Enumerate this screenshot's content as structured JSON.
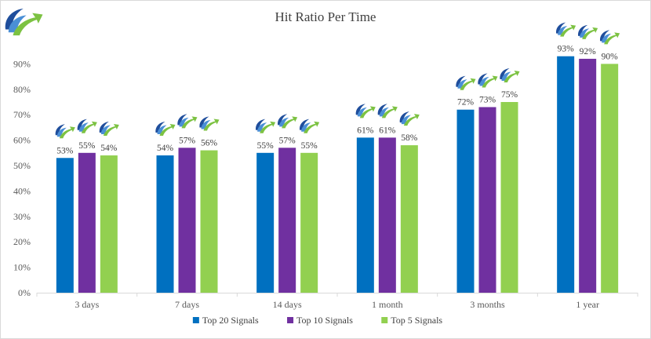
{
  "chart_data": {
    "type": "bar",
    "title": "Hit Ratio Per Time",
    "categories": [
      "3 days",
      "7 days",
      "14 days",
      "1 month",
      "3 months",
      "1 year"
    ],
    "series": [
      {
        "name": "Top 20 Signals",
        "color": "#0070c0",
        "values": [
          53,
          54,
          55,
          61,
          72,
          93
        ]
      },
      {
        "name": "Top 10 Signals",
        "color": "#7030a0",
        "values": [
          55,
          57,
          57,
          61,
          73,
          92
        ]
      },
      {
        "name": "Top 5 Signals",
        "color": "#92d050",
        "values": [
          54,
          56,
          55,
          58,
          75,
          90
        ]
      }
    ],
    "ylim": [
      0,
      90
    ],
    "yticks": [
      0,
      10,
      20,
      30,
      40,
      50,
      60,
      70,
      80,
      90
    ],
    "ytick_labels": [
      "0%",
      "10%",
      "20%",
      "30%",
      "40%",
      "50%",
      "60%",
      "70%",
      "80%",
      "90%"
    ],
    "data_label_format": "percent",
    "grid": false,
    "legend_position": "bottom",
    "xlabel": "",
    "ylabel": ""
  },
  "icons": {
    "logo": "logo-icon",
    "bar_marker": "logo-icon"
  }
}
